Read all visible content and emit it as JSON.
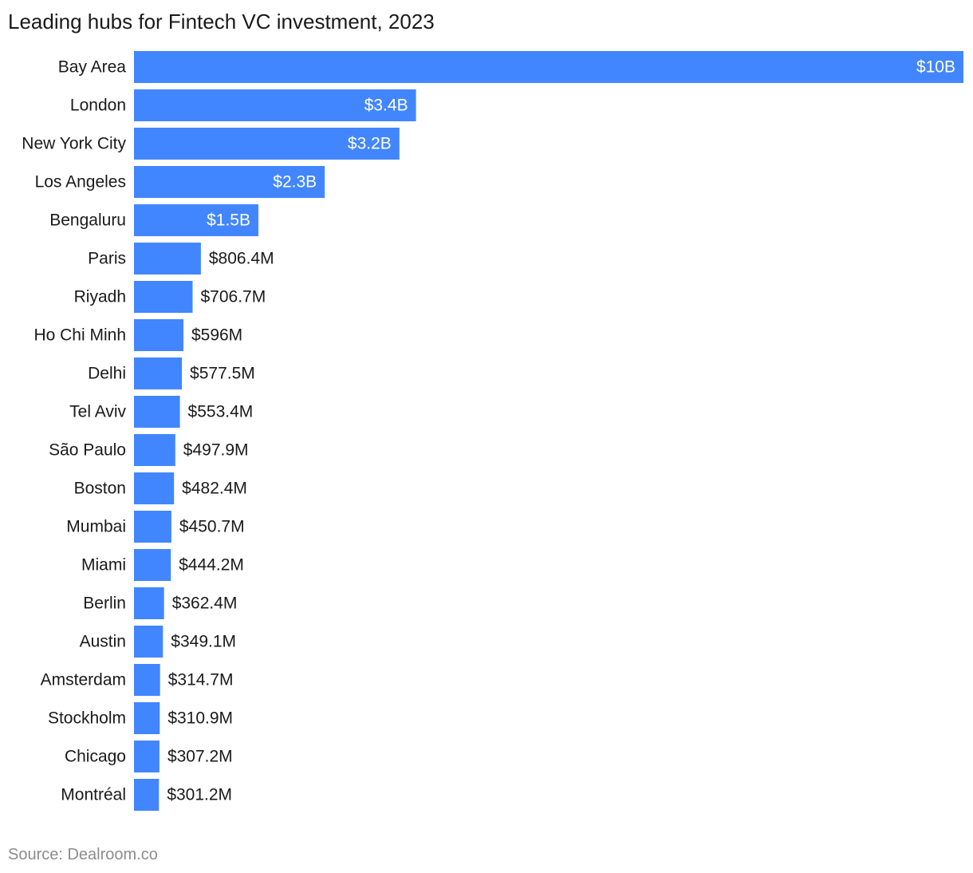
{
  "title": "Leading hubs for Fintech VC investment, 2023",
  "source": "Source: Dealroom.co",
  "colors": {
    "bar": "#4286ff",
    "label_inside": "#ffffff",
    "label_outside": "#1a1a1a",
    "category_text": "#1a1a1a",
    "source_text": "#8c8c8c"
  },
  "chart_data": {
    "type": "bar",
    "orientation": "horizontal",
    "title": "Leading hubs for Fintech VC investment, 2023",
    "xlabel": "",
    "ylabel": "",
    "unit": "USD",
    "xlim": [
      0,
      10000000000
    ],
    "grid": false,
    "legend": "none",
    "categories": [
      "Bay Area",
      "London",
      "New York City",
      "Los Angeles",
      "Bengaluru",
      "Paris",
      "Riyadh",
      "Ho Chi Minh",
      "Delhi",
      "Tel Aviv",
      "São Paulo",
      "Boston",
      "Mumbai",
      "Miami",
      "Berlin",
      "Austin",
      "Amsterdam",
      "Stockholm",
      "Chicago",
      "Montréal"
    ],
    "values": [
      10000000000,
      3400000000,
      3200000000,
      2300000000,
      1500000000,
      806400000,
      706700000,
      596000000,
      577500000,
      553400000,
      497900000,
      482400000,
      450700000,
      444200000,
      362400000,
      349100000,
      314700000,
      310900000,
      307200000,
      301200000
    ],
    "data_labels": [
      "$10B",
      "$3.4B",
      "$3.2B",
      "$2.3B",
      "$1.5B",
      "$806.4M",
      "$706.7M",
      "$596M",
      "$577.5M",
      "$553.4M",
      "$497.9M",
      "$482.4M",
      "$450.7M",
      "$444.2M",
      "$362.4M",
      "$349.1M",
      "$314.7M",
      "$310.9M",
      "$307.2M",
      "$301.2M"
    ],
    "labels_inside_first_n": 5
  }
}
